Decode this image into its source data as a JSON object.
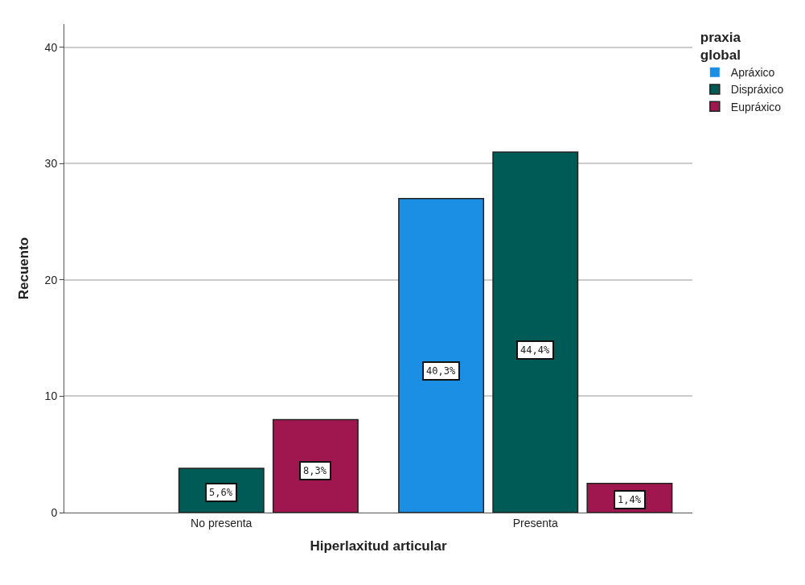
{
  "chart_data": {
    "type": "bar",
    "xlabel": "Hiperlaxitud articular",
    "ylabel": "Recuento",
    "legend_title": "praxia global",
    "categories": [
      "No presenta",
      "Presenta"
    ],
    "series": [
      {
        "name": "Apráxico",
        "color": "#1a8fe3",
        "values": [
          0,
          27
        ]
      },
      {
        "name": "Dispráxico",
        "color": "#005a55",
        "values": [
          3.8,
          31
        ]
      },
      {
        "name": "Eupráxico",
        "color": "#a0174f",
        "values": [
          8,
          2.5
        ]
      }
    ],
    "annotations": [
      "5,6%",
      "8,3%",
      "40,3%",
      "44,4%",
      "1,4%"
    ],
    "ylim": [
      0,
      42
    ],
    "yticks": [
      0,
      10,
      20,
      30,
      40
    ],
    "grid": "y",
    "legend": "top right"
  }
}
